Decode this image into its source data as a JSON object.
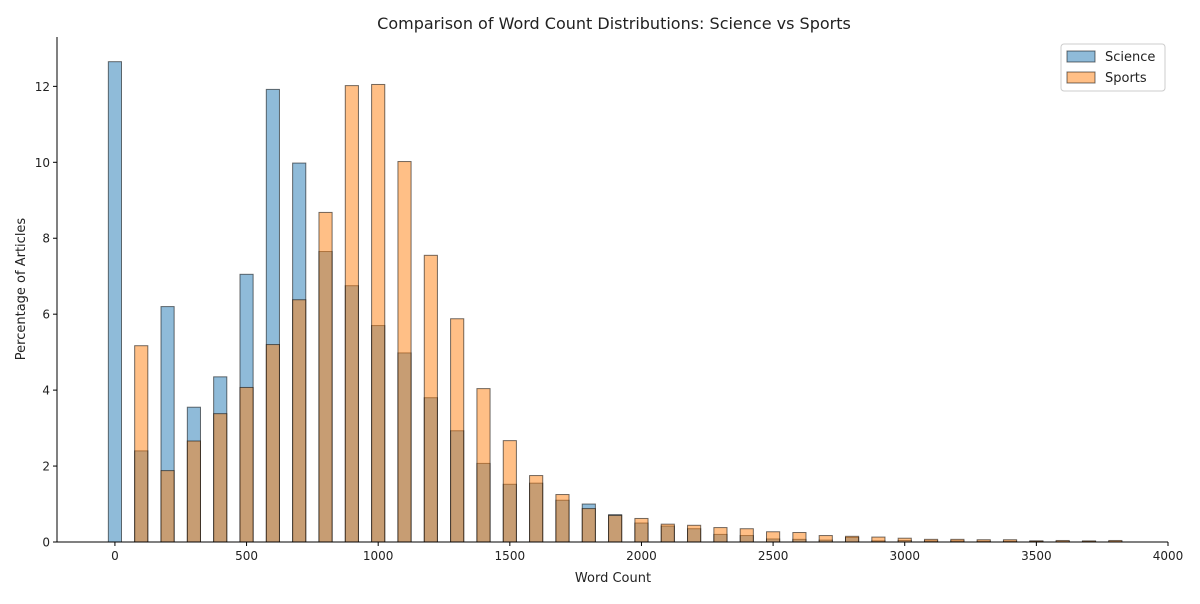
{
  "chart_data": {
    "type": "bar",
    "title": "Comparison of Word Count Distributions: Science vs Sports",
    "xlabel": "Word Count",
    "ylabel": "Percentage of Articles",
    "xlim": [
      -220,
      4000
    ],
    "ylim": [
      0,
      13.3
    ],
    "xticks": [
      0,
      500,
      1000,
      1500,
      2000,
      2500,
      3000,
      3500,
      4000
    ],
    "yticks": [
      0,
      2,
      4,
      6,
      8,
      10,
      12
    ],
    "bar_width": 50,
    "legend_position": "top-right",
    "grid": false,
    "series": [
      {
        "name": "Science",
        "color": "#1f77b4",
        "alpha": 0.5,
        "x": [
          0,
          100,
          200,
          300,
          400,
          500,
          600,
          700,
          800,
          900,
          1000,
          1100,
          1200,
          1300,
          1400,
          1500,
          1600,
          1700,
          1800,
          1900,
          2000,
          2100,
          2200,
          2300,
          2400,
          2500,
          2600,
          2700,
          2800,
          2900,
          3000,
          3100,
          3200,
          3300,
          3400,
          3500,
          3600,
          3700,
          3800
        ],
        "values": [
          12.65,
          2.4,
          6.2,
          3.55,
          4.35,
          7.05,
          11.92,
          9.98,
          7.65,
          6.75,
          5.7,
          4.98,
          3.8,
          2.93,
          2.07,
          1.52,
          1.55,
          1.1,
          1.0,
          0.72,
          0.5,
          0.42,
          0.35,
          0.2,
          0.17,
          0.08,
          0.07,
          0.05,
          0.12,
          0.03,
          0.04,
          0.03,
          0.03,
          0.02,
          0.02,
          0.02,
          0.01,
          0.01,
          0.01
        ]
      },
      {
        "name": "Sports",
        "color": "#ff7f0e",
        "alpha": 0.5,
        "x": [
          0,
          100,
          200,
          300,
          400,
          500,
          600,
          700,
          800,
          900,
          1000,
          1100,
          1200,
          1300,
          1400,
          1500,
          1600,
          1700,
          1800,
          1900,
          2000,
          2100,
          2200,
          2300,
          2400,
          2500,
          2600,
          2700,
          2800,
          2900,
          3000,
          3100,
          3200,
          3300,
          3400,
          3500,
          3600,
          3700,
          3800
        ],
        "values": [
          0,
          5.17,
          1.88,
          2.66,
          3.38,
          4.07,
          5.2,
          6.38,
          8.68,
          12.02,
          12.05,
          10.02,
          7.55,
          5.88,
          4.04,
          2.67,
          1.75,
          1.25,
          0.88,
          0.7,
          0.62,
          0.47,
          0.44,
          0.38,
          0.35,
          0.27,
          0.25,
          0.17,
          0.15,
          0.13,
          0.1,
          0.07,
          0.07,
          0.06,
          0.06,
          0.03,
          0.04,
          0.03,
          0.04
        ]
      }
    ]
  }
}
